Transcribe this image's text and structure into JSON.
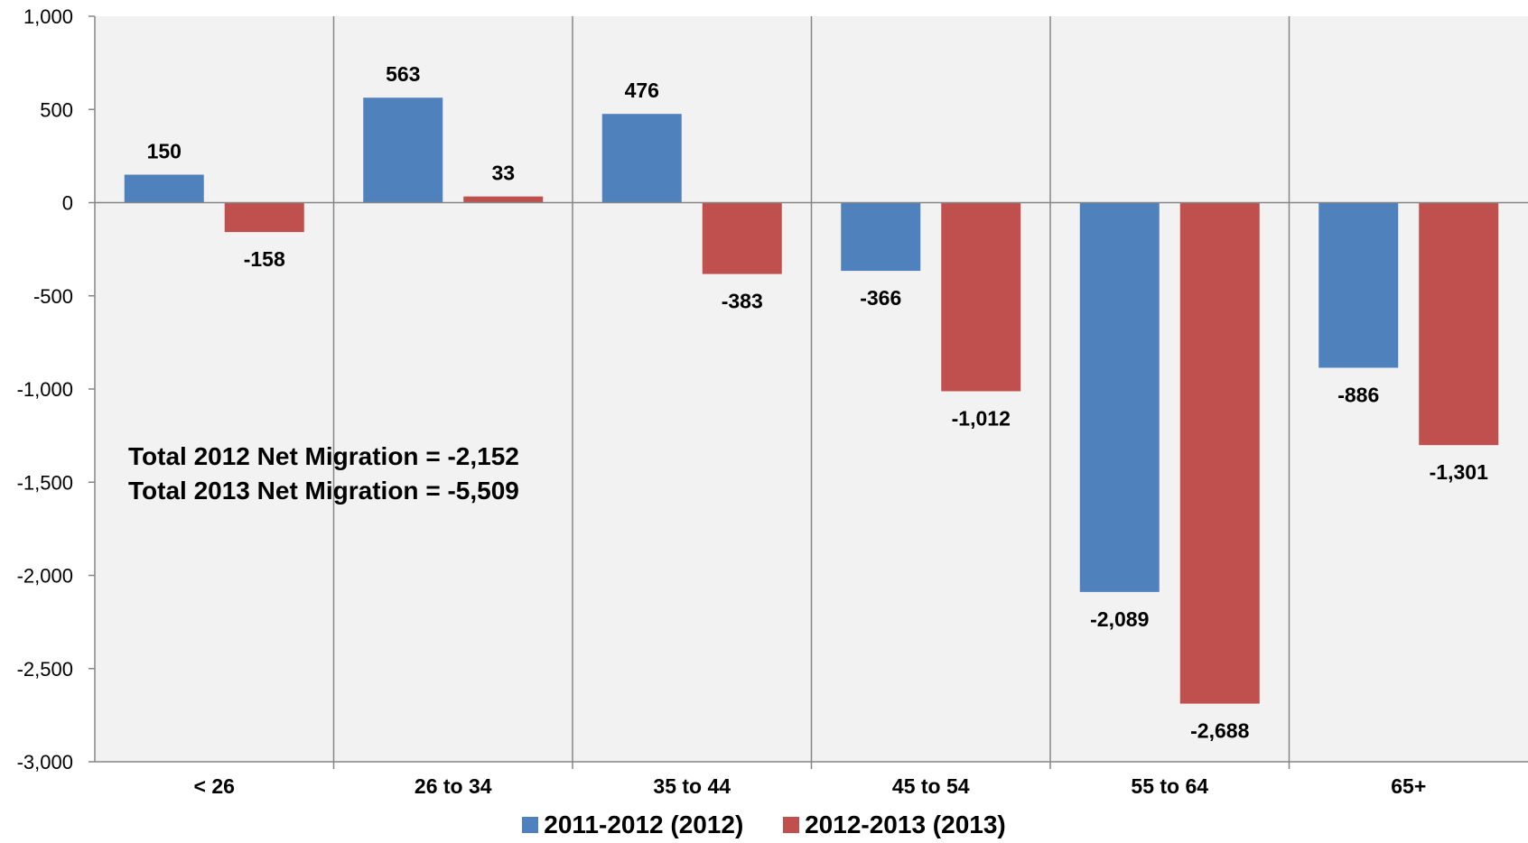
{
  "chart_data": {
    "type": "bar",
    "title": "",
    "xlabel": "",
    "ylabel": "",
    "categories": [
      "< 26",
      "26 to 34",
      "35 to 44",
      "45 to 54",
      "55 to 64",
      "65+"
    ],
    "series": [
      {
        "name": "2011-2012 (2012)",
        "color": "#4f81bd",
        "values": [
          150,
          563,
          476,
          -366,
          -2089,
          -886
        ],
        "labels": [
          "150",
          "563",
          "476",
          "-366",
          "-2,089",
          "-886"
        ]
      },
      {
        "name": "2012-2013 (2013)",
        "color": "#c0504d",
        "values": [
          -158,
          33,
          -383,
          -1012,
          -2688,
          -1301
        ],
        "labels": [
          "-158",
          "33",
          "-383",
          "-1,012",
          "-2,688",
          "-1,301"
        ]
      }
    ],
    "ylim": [
      -3000,
      1000
    ],
    "yticks": [
      1000,
      500,
      0,
      -500,
      -1000,
      -1500,
      -2000,
      -2500,
      -3000
    ],
    "ytick_labels": [
      "1,000",
      "500",
      "0",
      "-500",
      "-1,000",
      "-1,500",
      "-2,000",
      "-2,500",
      "-3,000"
    ],
    "grid": "vertical category separators",
    "legend_position": "bottom",
    "plot_background": "#f2f2f2",
    "annotations": [
      "Total 2012 Net Migration = -2,152",
      "Total 2013 Net Migration = -5,509"
    ]
  }
}
